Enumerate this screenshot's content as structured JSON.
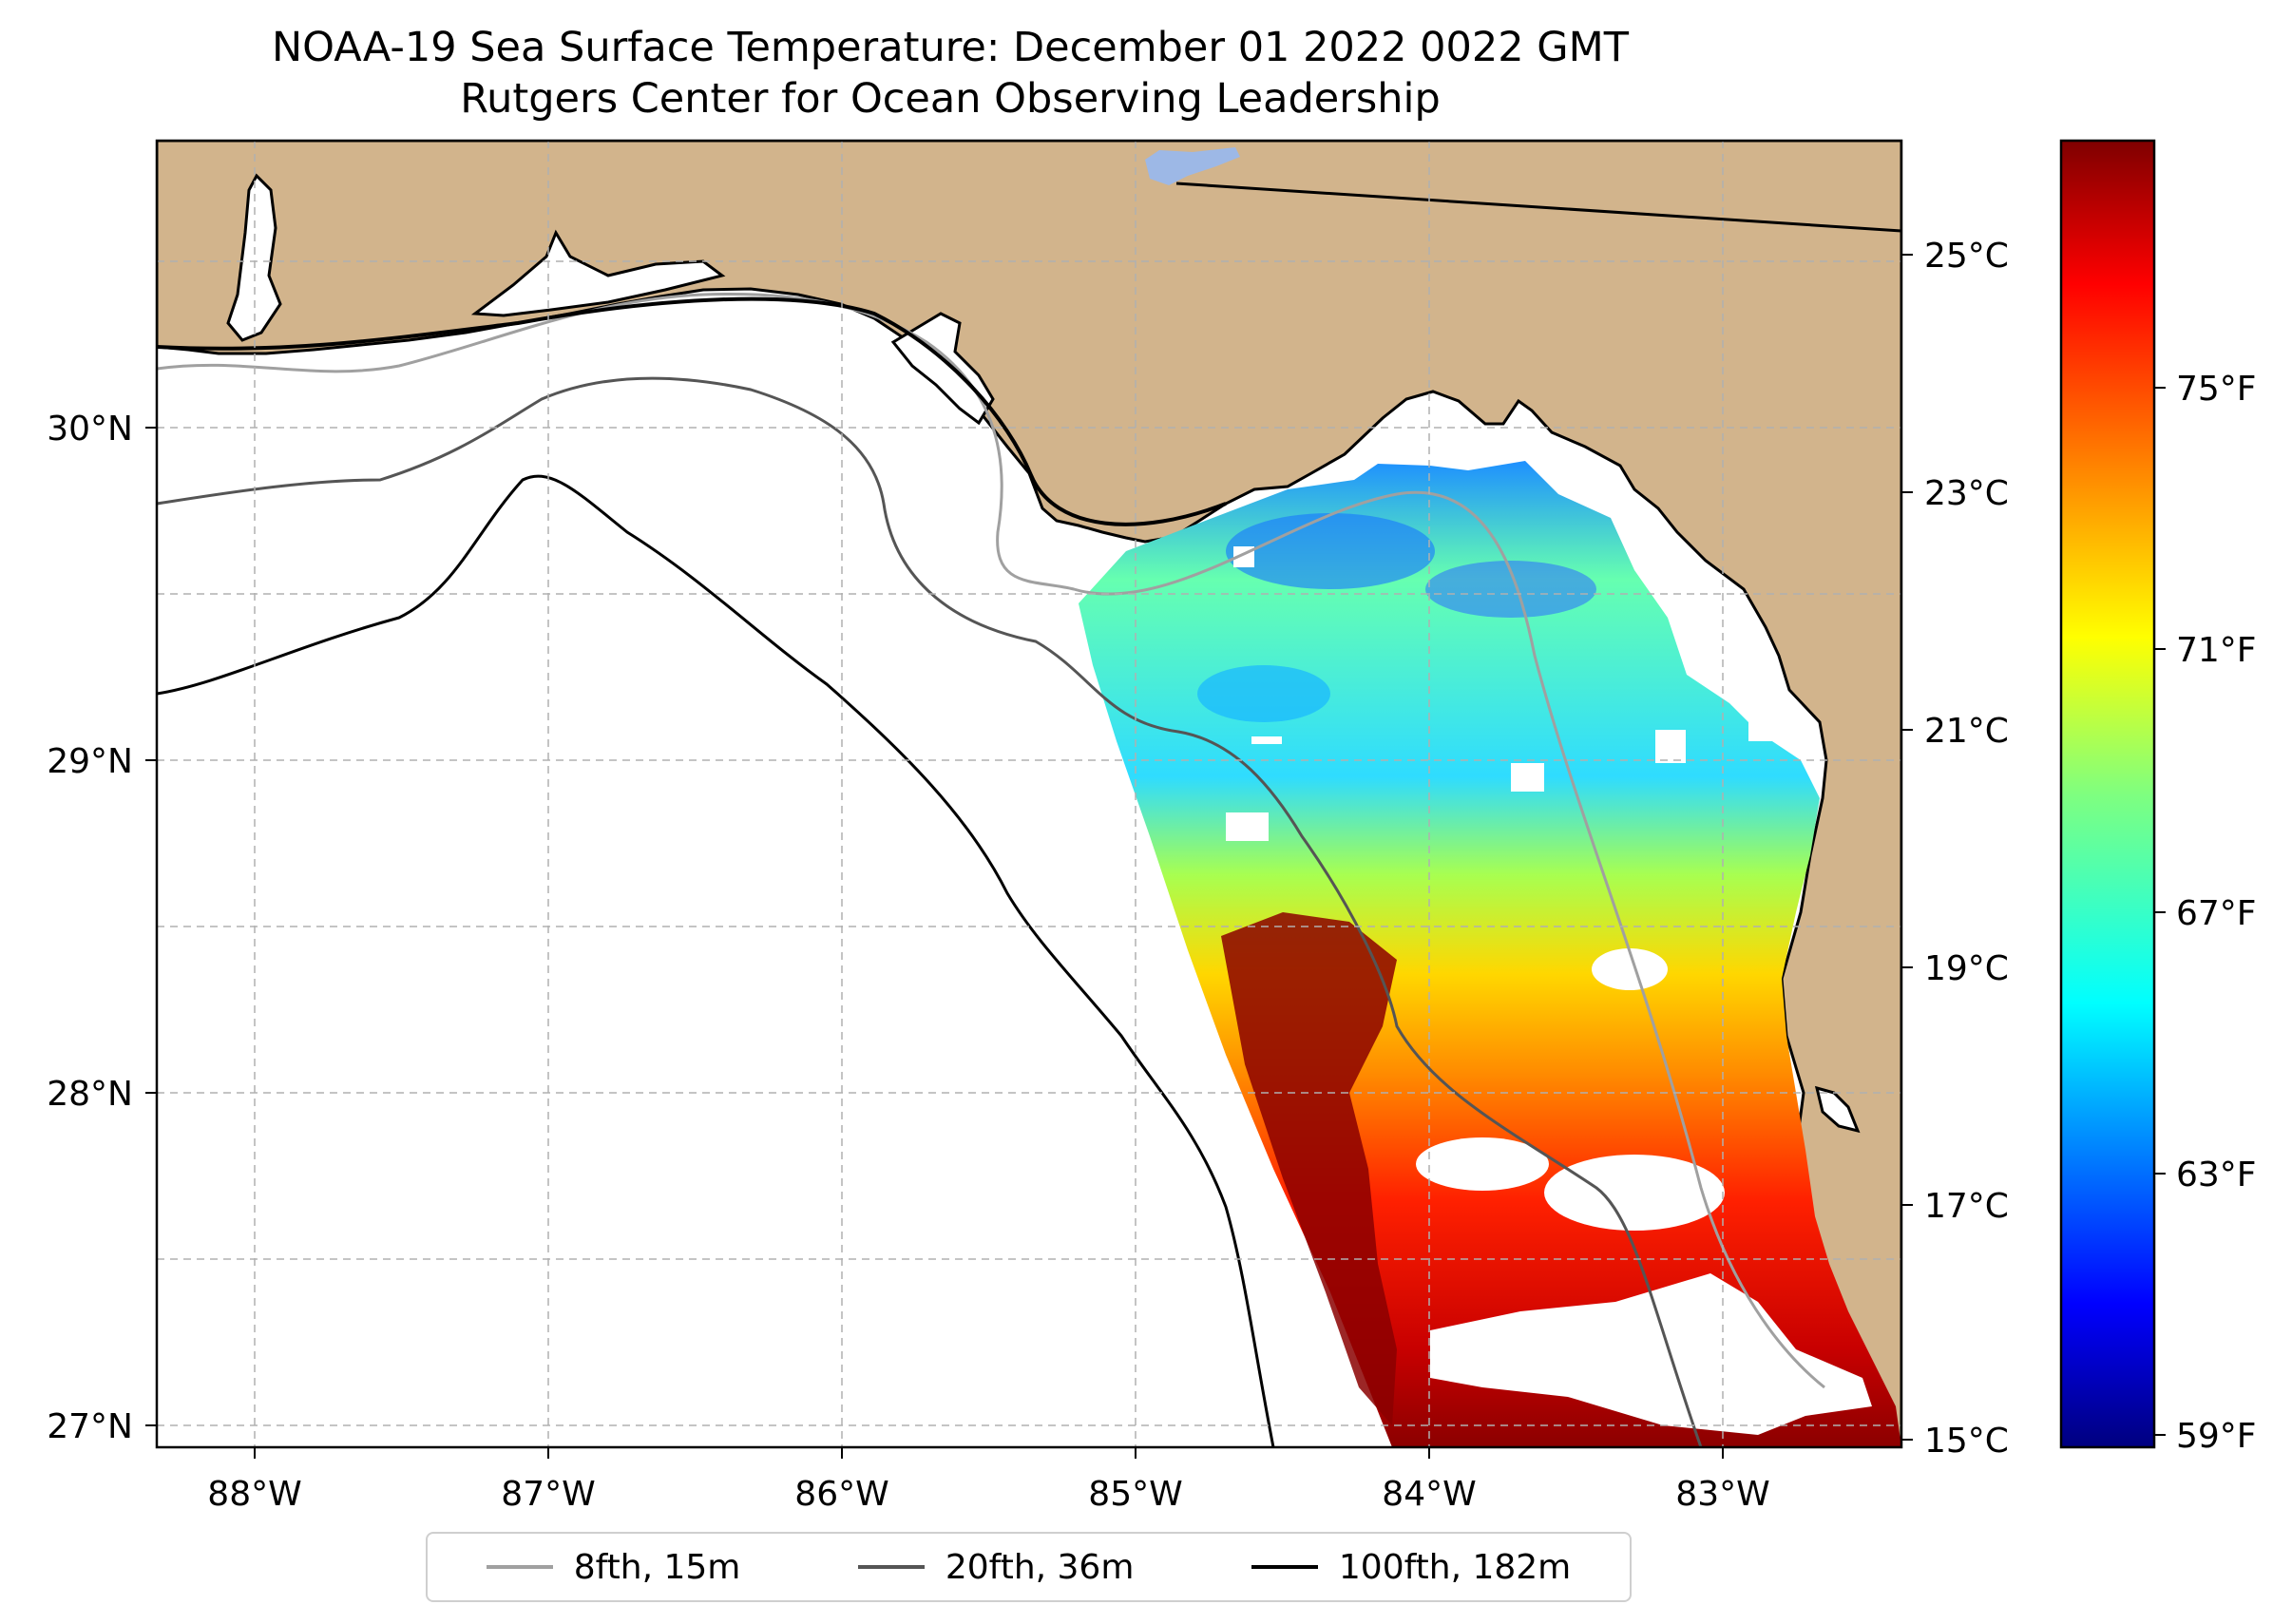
{
  "title": {
    "line1": "NOAA-19 Sea Surface Temperature: December 01 2022 0022 GMT",
    "line2": "Rutgers Center for Ocean Observing Leadership"
  },
  "map": {
    "lon_range": [
      -88.3,
      -82.4
    ],
    "lat_range": [
      26.95,
      30.85
    ],
    "x_ticks": [
      "88°W",
      "87°W",
      "86°W",
      "85°W",
      "84°W",
      "83°W"
    ],
    "y_ticks": [
      "27°N",
      "28°N",
      "29°N",
      "30°N"
    ],
    "land_color": "#d2b48c",
    "lake_color": "#9db8e6",
    "missing_data_color": "#ffffff"
  },
  "colorbar": {
    "celsius_ticks": [
      "25°C",
      "23°C",
      "21°C",
      "19°C",
      "17°C",
      "15°C"
    ],
    "fahrenheit_ticks": [
      "75°F",
      "71°F",
      "67°F",
      "63°F",
      "59°F"
    ],
    "celsius_range": [
      15,
      26
    ],
    "colormap": "jet",
    "colors": [
      "#00007f",
      "#0000ff",
      "#007fff",
      "#00ffff",
      "#7fff7f",
      "#ffff00",
      "#ff7f00",
      "#ff0000",
      "#7f0000"
    ]
  },
  "legend": [
    {
      "label": "8fth, 15m",
      "color": "#a0a0a0"
    },
    {
      "label": "20fth, 36m",
      "color": "#555555"
    },
    {
      "label": "100fth, 182m",
      "color": "#000000"
    }
  ]
}
